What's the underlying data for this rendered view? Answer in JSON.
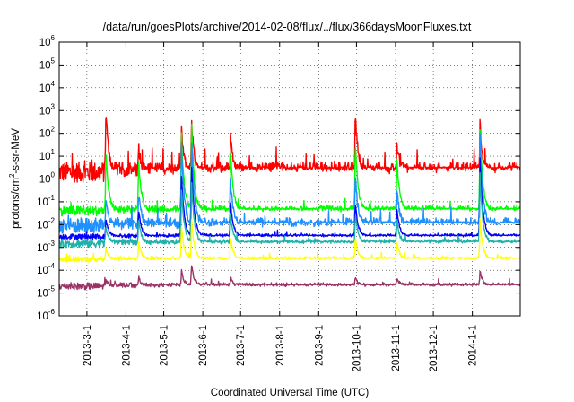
{
  "chart_data": {
    "type": "line",
    "title": "/data/run/goesPlots/archive/2014-02-08/flux/../flux/366daysMoonFluxes.txt",
    "xlabel": "Coordinated Universal Time (UTC)",
    "ylabel": {
      "prefix": "protons/cm",
      "superscript": "2",
      "suffix": "-s-sr-MeV"
    },
    "y_scale": "log",
    "ylim": [
      1e-06,
      1000000.0
    ],
    "y_ticks": [
      {
        "base": "10",
        "exp": "-6",
        "value": 1e-06
      },
      {
        "base": "10",
        "exp": "-5",
        "value": 1e-05
      },
      {
        "base": "10",
        "exp": "-4",
        "value": 0.0001
      },
      {
        "base": "10",
        "exp": "-3",
        "value": 0.001
      },
      {
        "base": "10",
        "exp": "-2",
        "value": 0.01
      },
      {
        "base": "10",
        "exp": "-1",
        "value": 0.1
      },
      {
        "base": "10",
        "exp": "0",
        "value": 1
      },
      {
        "base": "10",
        "exp": "1",
        "value": 10
      },
      {
        "base": "10",
        "exp": "2",
        "value": 100
      },
      {
        "base": "10",
        "exp": "3",
        "value": 1000
      },
      {
        "base": "10",
        "exp": "4",
        "value": 10000
      },
      {
        "base": "10",
        "exp": "5",
        "value": 100000
      },
      {
        "base": "10",
        "exp": "6",
        "value": 1000000
      }
    ],
    "xlim": [
      "2013-02-07",
      "2014-02-08"
    ],
    "x_ticks": [
      "2013-3-1",
      "2013-4-1",
      "2013-5-1",
      "2013-6-1",
      "2013-7-1",
      "2013-8-1",
      "2013-9-1",
      "2013-10-1",
      "2013-11-1",
      "2013-12-1",
      "2014-1-1"
    ],
    "grid": true,
    "legend": "none",
    "events": [
      {
        "date": "2013-03-16",
        "peaks": [
          1300,
          20,
          0.2,
          0.02,
          0.01,
          0.001,
          4e-05
        ]
      },
      {
        "date": "2013-04-11",
        "peaks": [
          30,
          8,
          0.3,
          0.05,
          0.02,
          0.002,
          5e-05
        ]
      },
      {
        "date": "2013-05-15",
        "peaks": [
          250,
          150,
          50,
          2,
          0.5,
          0.01,
          0.0001
        ]
      },
      {
        "date": "2013-05-23",
        "peaks": [
          450,
          400,
          80,
          5,
          1,
          0.02,
          0.0002
        ]
      },
      {
        "date": "2013-06-23",
        "peaks": [
          80,
          20,
          1,
          0.1,
          0.03,
          0.003,
          5e-05
        ]
      },
      {
        "date": "2013-09-30",
        "peaks": [
          1000,
          60,
          2,
          0.1,
          0.03,
          0.003,
          5e-05
        ]
      },
      {
        "date": "2013-11-02",
        "peaks": [
          40,
          10,
          0.5,
          0.05,
          0.02,
          0.002,
          5e-05
        ]
      },
      {
        "date": "2014-01-07",
        "peaks": [
          300,
          200,
          100,
          10,
          2,
          0.02,
          0.0001
        ]
      }
    ],
    "series": [
      {
        "color": "#ff0000",
        "baseline": 2,
        "noise_decades": 0.45
      },
      {
        "color": "#00ff00",
        "baseline": 0.04,
        "noise_decades": 0.22
      },
      {
        "color": "#1e90ff",
        "baseline": 0.009,
        "noise_decades": 0.35
      },
      {
        "color": "#0000ff",
        "baseline": 0.003,
        "noise_decades": 0.12
      },
      {
        "color": "#20b2aa",
        "baseline": 0.0015,
        "noise_decades": 0.18
      },
      {
        "color": "#ffff00",
        "baseline": 0.0003,
        "noise_decades": 0.12
      },
      {
        "color": "#993366",
        "baseline": 2e-05,
        "noise_decades": 0.15
      }
    ]
  }
}
